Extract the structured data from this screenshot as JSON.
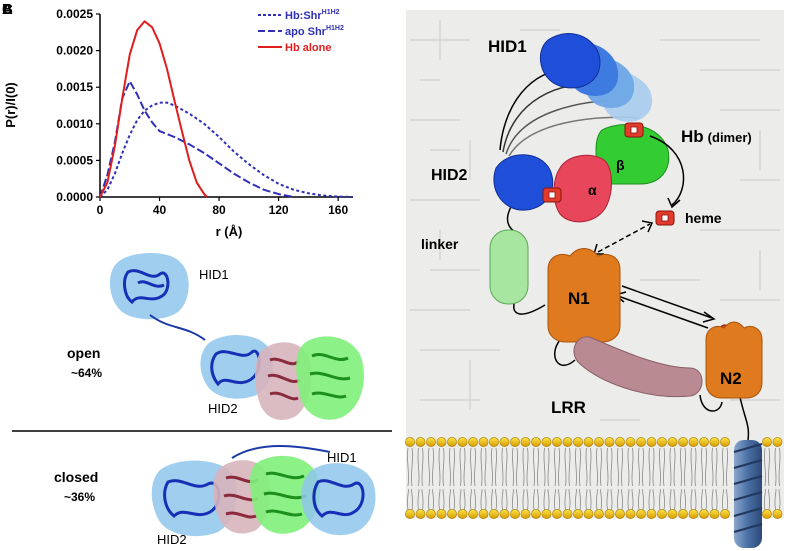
{
  "panels": {
    "a_label": "A",
    "b_label": "B",
    "c_label": "C"
  },
  "chart_data": {
    "type": "line",
    "title": "",
    "xlabel": "r (Å)",
    "ylabel": "P(r)/I(0)",
    "xlim": [
      0,
      170
    ],
    "ylim": [
      0,
      0.0025
    ],
    "xticks": [
      "0",
      "40",
      "80",
      "120",
      "160"
    ],
    "yticks": [
      "0.0000",
      "0.0005",
      "0.0010",
      "0.0015",
      "0.0020",
      "0.0025"
    ],
    "legend_position": "top-right",
    "series": [
      {
        "name": "Hb:Shr",
        "name_sup": "H1H2",
        "style": "dotted",
        "color": "#2f2fb8",
        "points": [
          [
            0,
            0
          ],
          [
            5,
            0.0001
          ],
          [
            10,
            0.00032
          ],
          [
            15,
            0.0006
          ],
          [
            20,
            0.00085
          ],
          [
            25,
            0.00105
          ],
          [
            30,
            0.00118
          ],
          [
            35,
            0.00125
          ],
          [
            40,
            0.00129
          ],
          [
            45,
            0.00129
          ],
          [
            50,
            0.00125
          ],
          [
            60,
            0.00114
          ],
          [
            70,
            0.001
          ],
          [
            80,
            0.00082
          ],
          [
            90,
            0.00062
          ],
          [
            100,
            0.00045
          ],
          [
            110,
            0.0003
          ],
          [
            120,
            0.00018
          ],
          [
            130,
            0.0001
          ],
          [
            140,
            5e-05
          ],
          [
            150,
            2e-05
          ],
          [
            160,
            5e-06
          ],
          [
            170,
            0
          ]
        ]
      },
      {
        "name": "apo Shr",
        "name_sup": "H1H2",
        "style": "dashed",
        "color": "#2f2fb8",
        "points": [
          [
            0,
            0
          ],
          [
            5,
            0.0003
          ],
          [
            10,
            0.00075
          ],
          [
            15,
            0.00135
          ],
          [
            20,
            0.00158
          ],
          [
            25,
            0.0014
          ],
          [
            30,
            0.00118
          ],
          [
            35,
            0.00102
          ],
          [
            40,
            0.0009
          ],
          [
            45,
            0.00086
          ],
          [
            50,
            0.00082
          ],
          [
            60,
            0.00072
          ],
          [
            70,
            0.0006
          ],
          [
            80,
            0.00046
          ],
          [
            90,
            0.00032
          ],
          [
            100,
            0.0002
          ],
          [
            110,
            0.0001
          ],
          [
            120,
            4e-05
          ],
          [
            130,
            0
          ]
        ]
      },
      {
        "name": "Hb alone",
        "name_sup": "",
        "style": "solid",
        "color": "#e01e1e",
        "points": [
          [
            0,
            0
          ],
          [
            5,
            0.0002
          ],
          [
            10,
            0.0007
          ],
          [
            15,
            0.00135
          ],
          [
            20,
            0.00195
          ],
          [
            25,
            0.00228
          ],
          [
            30,
            0.0024
          ],
          [
            35,
            0.00232
          ],
          [
            40,
            0.0021
          ],
          [
            45,
            0.00175
          ],
          [
            50,
            0.00132
          ],
          [
            55,
            0.0009
          ],
          [
            60,
            0.0005
          ],
          [
            65,
            0.0002
          ],
          [
            70,
            4e-05
          ],
          [
            72,
            0
          ]
        ]
      }
    ]
  },
  "structures": {
    "open_state": "open",
    "open_percent": "~64%",
    "closed_state": "closed",
    "closed_percent": "~36%",
    "hid1": "HID1",
    "hid2": "HID2"
  },
  "schematic": {
    "hid1": "HID1",
    "hid2": "HID2",
    "hb": "Hb",
    "hb_dimer": "(dimer)",
    "alpha": "α",
    "beta": "β",
    "heme": "heme",
    "linker": "linker",
    "n1": "N1",
    "n2": "N2",
    "lrr": "LRR"
  },
  "colors": {
    "blue_domain": "#1f4fd8",
    "red_alpha": "#e8465a",
    "green_beta": "#33cc33",
    "orange_neat": "#e07a1f",
    "linker_green": "#a6e6a0",
    "lrr_mauve": "#b98a92",
    "lipid_head": "#f2c200",
    "helix_blue": "#4a6fa5",
    "schematic_bg": "#ececea"
  }
}
